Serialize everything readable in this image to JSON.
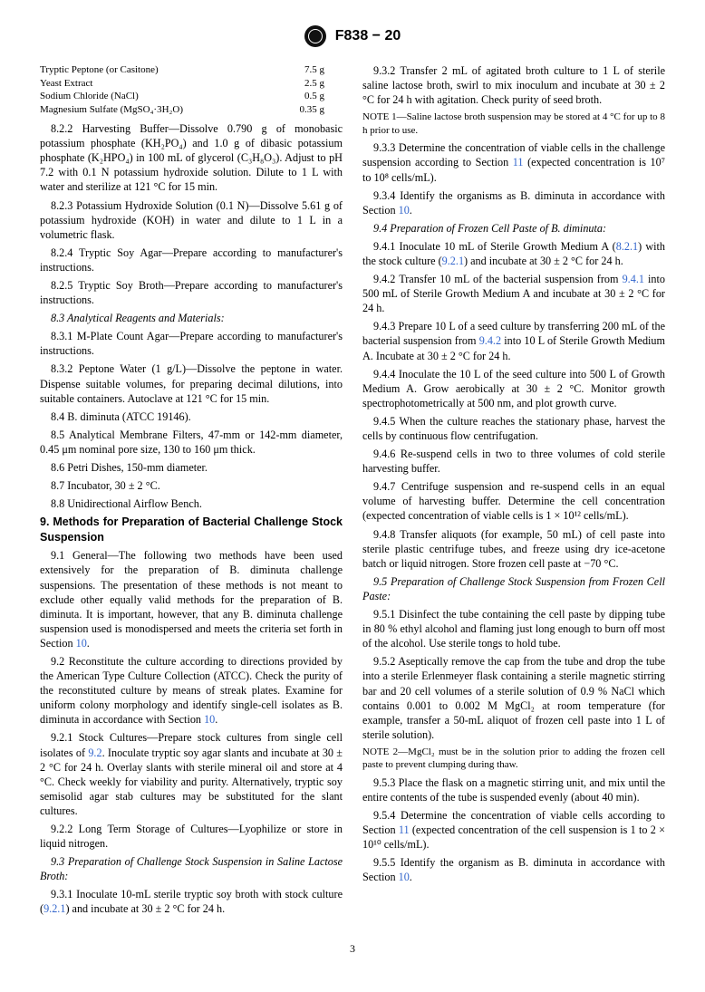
{
  "header": {
    "designation": "F838 − 20"
  },
  "ingredients": {
    "rows": [
      {
        "name": "Tryptic Peptone (or Casitone)",
        "amount": "7.5 g"
      },
      {
        "name": "Yeast Extract",
        "amount": "2.5 g"
      },
      {
        "name": "Sodium Chloride (NaCl)",
        "amount": "0.5 g"
      },
      {
        "name": "Magnesium Sulfate (MgSO₄·3H₂O)",
        "amount": "0.35 g"
      }
    ]
  },
  "paragraphs": {
    "p822": "8.2.2 Harvesting Buffer—Dissolve 0.790 g of monobasic potassium phosphate (KH₂PO₄) and 1.0 g of dibasic potassium phosphate (K₂HPO₄) in 100 mL of glycerol (C₃H₈O₃). Adjust to pH 7.2 with 0.1 N potassium hydroxide solution. Dilute to 1 L with water and sterilize at 121 °C for 15 min.",
    "p823": "8.2.3 Potassium Hydroxide Solution (0.1 N)—Dissolve 5.61 g of potassium hydroxide (KOH) in water and dilute to 1 L in a volumetric flask.",
    "p824": "8.2.4 Tryptic Soy Agar—Prepare according to manufacturer's instructions.",
    "p825": "8.2.5 Tryptic Soy Broth—Prepare according to manufacturer's instructions.",
    "p83": "8.3 Analytical Reagents and Materials:",
    "p831": "8.3.1 M-Plate Count Agar—Prepare according to manufacturer's instructions.",
    "p832": "8.3.2 Peptone Water (1 g/L)—Dissolve the peptone in water. Dispense suitable volumes, for preparing decimal dilutions, into suitable containers. Autoclave at 121 °C for 15 min.",
    "p84": "8.4 B. diminuta (ATCC 19146).",
    "p85": "8.5 Analytical Membrane Filters, 47-mm or 142-mm diameter, 0.45 μm nominal pore size, 130 to 160 μm thick.",
    "p86": "8.6 Petri Dishes, 150-mm diameter.",
    "p87": "8.7 Incubator, 30 ± 2 °C.",
    "p88": "8.8 Unidirectional Airflow Bench.",
    "sec9": "9. Methods for Preparation of Bacterial Challenge Stock Suspension",
    "p91a": "9.1 General—The following two methods have been used extensively for the preparation of B. diminuta challenge suspensions. The presentation of these methods is not meant to exclude other equally valid methods for the preparation of B. diminuta. It is important, however, that any B. diminuta challenge suspension used is monodispersed and meets the criteria set forth in Section ",
    "p91b": "10",
    "p91c": ".",
    "p92a": "9.2 Reconstitute the culture according to directions provided by the American Type Culture Collection (ATCC). Check the purity of the reconstituted culture by means of streak plates. Examine for uniform colony morphology and identify single-cell isolates as B. diminuta in accordance with Section ",
    "p92b": "10",
    "p92c": ".",
    "p921a": "9.2.1 Stock Cultures—Prepare stock cultures from single cell isolates of ",
    "p921b": "9.2",
    "p921c": ". Inoculate tryptic soy agar slants and incubate at 30 ± 2 °C for 24 h. Overlay slants with sterile mineral oil and store at 4 °C. Check weekly for viability and purity. Alternatively, tryptic soy semisolid agar stab cultures may be substituted for the slant cultures.",
    "p922": "9.2.2 Long Term Storage of Cultures—Lyophilize or store in liquid nitrogen.",
    "p93": "9.3 Preparation of Challenge Stock Suspension in Saline Lactose Broth:",
    "p931a": "9.3.1 Inoculate 10-mL sterile tryptic soy broth with stock culture (",
    "p931b": "9.2.1",
    "p931c": ") and incubate at 30 ± 2 °C for 24 h.",
    "p932": "9.3.2 Transfer 2 mL of agitated broth culture to 1 L of sterile saline lactose broth, swirl to mix inoculum and incubate at 30 ± 2 °C for 24 h with agitation. Check purity of seed broth.",
    "note1": "NOTE 1—Saline lactose broth suspension may be stored at 4 °C for up to 8 h prior to use.",
    "p933a": "9.3.3 Determine the concentration of viable cells in the challenge suspension according to Section ",
    "p933b": "11",
    "p933c": " (expected concentration is 10⁷ to 10⁸ cells/mL).",
    "p934a": "9.3.4 Identify the organisms as B. diminuta in accordance with Section ",
    "p934b": "10",
    "p934c": ".",
    "p94": "9.4 Preparation of Frozen Cell Paste of B. diminuta:",
    "p941a": "9.4.1 Inoculate 10 mL of Sterile Growth Medium A (",
    "p941b": "8.2.1",
    "p941c": ") with the stock culture (",
    "p941d": "9.2.1",
    "p941e": ") and incubate at 30 ± 2 °C for 24 h.",
    "p942a": "9.4.2 Transfer 10 mL of the bacterial suspension from ",
    "p942b": "9.4.1",
    "p942c": " into 500 mL of Sterile Growth Medium A and incubate at 30 ± 2 °C for 24 h.",
    "p943a": "9.4.3 Prepare 10 L of a seed culture by transferring 200 mL of the bacterial suspension from ",
    "p943b": "9.4.2",
    "p943c": " into 10 L of Sterile Growth Medium A. Incubate at 30 ± 2 °C for 24 h.",
    "p944": "9.4.4 Inoculate the 10 L of the seed culture into 500 L of Growth Medium A. Grow aerobically at 30 ± 2 °C. Monitor growth spectrophotometrically at 500 nm, and plot growth curve.",
    "p945": "9.4.5 When the culture reaches the stationary phase, harvest the cells by continuous flow centrifugation.",
    "p946": "9.4.6 Re-suspend cells in two to three volumes of cold sterile harvesting buffer.",
    "p947": "9.4.7 Centrifuge suspension and re-suspend cells in an equal volume of harvesting buffer. Determine the cell concentration (expected concentration of viable cells is 1 × 10¹² cells/mL).",
    "p948": "9.4.8 Transfer aliquots (for example, 50 mL) of cell paste into sterile plastic centrifuge tubes, and freeze using dry ice-acetone batch or liquid nitrogen. Store frozen cell paste at −70 °C.",
    "p95": "9.5 Preparation of Challenge Stock Suspension from Frozen Cell Paste:",
    "p951": "9.5.1 Disinfect the tube containing the cell paste by dipping tube in 80 % ethyl alcohol and flaming just long enough to burn off most of the alcohol. Use sterile tongs to hold tube.",
    "p952": "9.5.2 Aseptically remove the cap from the tube and drop the tube into a sterile Erlenmeyer flask containing a sterile magnetic stirring bar and 20 cell volumes of a sterile solution of 0.9 % NaCl which contains 0.001 to 0.002 M MgCl₂ at room temperature (for example, transfer a 50-mL aliquot of frozen cell paste into 1 L of sterile solution).",
    "note2": "NOTE 2—MgCl₂ must be in the solution prior to adding the frozen cell paste to prevent clumping during thaw.",
    "p953": "9.5.3 Place the flask on a magnetic stirring unit, and mix until the entire contents of the tube is suspended evenly (about 40 min).",
    "p954a": "9.5.4 Determine the concentration of viable cells according to Section ",
    "p954b": "11",
    "p954c": " (expected concentration of the cell suspension is 1 to 2 × 10¹⁰ cells/mL).",
    "p955a": "9.5.5 Identify the organism as B. diminuta in accordance with Section ",
    "p955b": "10",
    "p955c": "."
  },
  "page_number": "3"
}
